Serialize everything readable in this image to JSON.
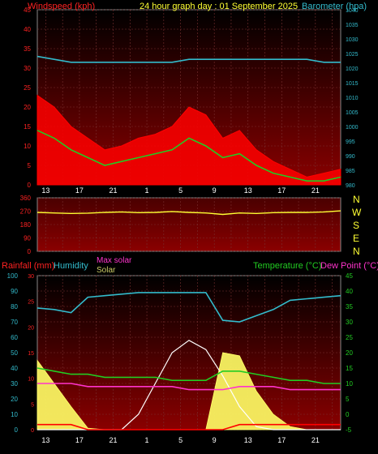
{
  "header": {
    "windspeed_label": "Windspeed (kph)",
    "title": "24 hour graph day : 01 September 2025",
    "barometer_label": "Barometer (hpa)"
  },
  "legend_bottom": {
    "rainfall": "Rainfall (mm)",
    "humidity": "Humidity",
    "max_solar": "Max solar",
    "solar": "Solar",
    "temperature": "Temperature (°C)",
    "dew_point": "Dew Point (°C)"
  },
  "compass": [
    "N",
    "W",
    "S",
    "E",
    "N"
  ],
  "colors": {
    "wind": "#ff0000",
    "avg_wind": "#22cc22",
    "barometer": "#33bbcc",
    "direction": "#ffff33",
    "rainfall": "#ff0000",
    "humidity": "#33bbcc",
    "solar": "#ffff66",
    "max_solar": "#ffffff",
    "temperature": "#22cc22",
    "dew_point": "#ff33cc"
  },
  "x_ticks": [
    "13",
    "15",
    "17",
    "19",
    "21",
    "23",
    "1",
    "3",
    "5",
    "7",
    "9",
    "11",
    "13",
    "15",
    "17",
    "19",
    "21",
    "23"
  ],
  "chart_data": [
    {
      "type": "line",
      "name": "wind-barometer",
      "x_hours": [
        12,
        14,
        16,
        18,
        20,
        22,
        24,
        26,
        28,
        30,
        32,
        34,
        36,
        38,
        40,
        42,
        44,
        46,
        48
      ],
      "x_range": [
        12,
        48
      ],
      "series": [
        {
          "name": "Windspeed",
          "axis": "left",
          "values": [
            23,
            20,
            15,
            12,
            9,
            10,
            12,
            13,
            15,
            20,
            18,
            12,
            14,
            9,
            6,
            4,
            2,
            3,
            4
          ]
        },
        {
          "name": "Average",
          "axis": "left",
          "values": [
            14,
            12,
            9,
            7,
            5,
            6,
            7,
            8,
            9,
            12,
            10,
            7,
            8,
            5,
            3,
            2,
            1,
            1,
            2
          ]
        },
        {
          "name": "Barometer",
          "axis": "right",
          "values": [
            1024,
            1023,
            1022,
            1022,
            1022,
            1022,
            1022,
            1022,
            1022,
            1023,
            1023,
            1023,
            1023,
            1023,
            1023,
            1023,
            1023,
            1022,
            1022
          ]
        }
      ],
      "left_axis": {
        "ylim": [
          0,
          45
        ],
        "ticks": [
          0,
          5,
          10,
          15,
          20,
          25,
          30,
          35,
          40,
          45
        ]
      },
      "right_axis": {
        "ylim": [
          980,
          1040
        ],
        "ticks": [
          980,
          985,
          990,
          995,
          1000,
          1005,
          1010,
          1015,
          1020,
          1025,
          1030,
          1035,
          1040
        ]
      }
    },
    {
      "type": "line",
      "name": "wind-direction",
      "x_hours": [
        12,
        14,
        16,
        18,
        20,
        22,
        24,
        26,
        28,
        30,
        32,
        34,
        36,
        38,
        40,
        42,
        44,
        46,
        48
      ],
      "x_range": [
        12,
        48
      ],
      "series": [
        {
          "name": "Direction",
          "values": [
            262,
            258,
            255,
            257,
            262,
            265,
            260,
            262,
            268,
            262,
            258,
            248,
            258,
            255,
            260,
            262,
            262,
            265,
            272
          ]
        }
      ],
      "ylim": [
        0,
        360
      ],
      "ticks": [
        0,
        90,
        180,
        270,
        360
      ]
    },
    {
      "type": "line",
      "name": "temperature-humidity-solar",
      "x_hours": [
        12,
        14,
        16,
        18,
        20,
        22,
        24,
        26,
        28,
        30,
        32,
        34,
        36,
        38,
        40,
        42,
        44,
        46,
        48
      ],
      "x_range": [
        12,
        48
      ],
      "series": [
        {
          "name": "Temperature",
          "axis": "right",
          "values": [
            15,
            14,
            13,
            13,
            12,
            12,
            12,
            12,
            11,
            11,
            11,
            14,
            14,
            13,
            12,
            11,
            11,
            10,
            10
          ]
        },
        {
          "name": "Dew Point",
          "axis": "right",
          "values": [
            10,
            10,
            10,
            9,
            9,
            9,
            9,
            9,
            9,
            8,
            8,
            8,
            9,
            9,
            9,
            8,
            8,
            8,
            8
          ]
        },
        {
          "name": "Humidity",
          "axis": "left_humidity",
          "values": [
            79,
            78,
            76,
            86,
            87,
            88,
            89,
            89,
            89,
            89,
            89,
            71,
            70,
            74,
            78,
            84,
            85,
            86,
            87
          ]
        },
        {
          "name": "Rainfall",
          "axis": "left_rain",
          "values": [
            1,
            1,
            1,
            0,
            0,
            0,
            0,
            0,
            0,
            0,
            0,
            0,
            1,
            1,
            1,
            1,
            1,
            1,
            1
          ]
        },
        {
          "name": "Solar",
          "axis": "solar",
          "values": [
            450,
            300,
            150,
            10,
            0,
            0,
            0,
            0,
            0,
            0,
            0,
            500,
            480,
            250,
            100,
            20,
            0,
            0,
            0
          ]
        },
        {
          "name": "Max solar",
          "axis": "solar",
          "values": [
            0,
            0,
            0,
            0,
            0,
            0,
            100,
            300,
            500,
            580,
            520,
            350,
            150,
            20,
            0,
            0,
            0,
            0,
            0
          ]
        }
      ],
      "rain_axis": {
        "ylim": [
          0,
          30
        ],
        "ticks": [
          0,
          5,
          10,
          15,
          20,
          25,
          30
        ]
      },
      "humidity_axis": {
        "ylim": [
          0,
          100
        ],
        "ticks": [
          0,
          10,
          20,
          30,
          40,
          50,
          60,
          70,
          80,
          90,
          100
        ]
      },
      "temp_axis": {
        "ylim": [
          -5,
          45
        ],
        "ticks": [
          -5,
          0,
          5,
          10,
          15,
          20,
          25,
          30,
          35,
          40,
          45
        ]
      },
      "solar_axis": {
        "ylim": [
          0,
          1000
        ]
      }
    }
  ]
}
